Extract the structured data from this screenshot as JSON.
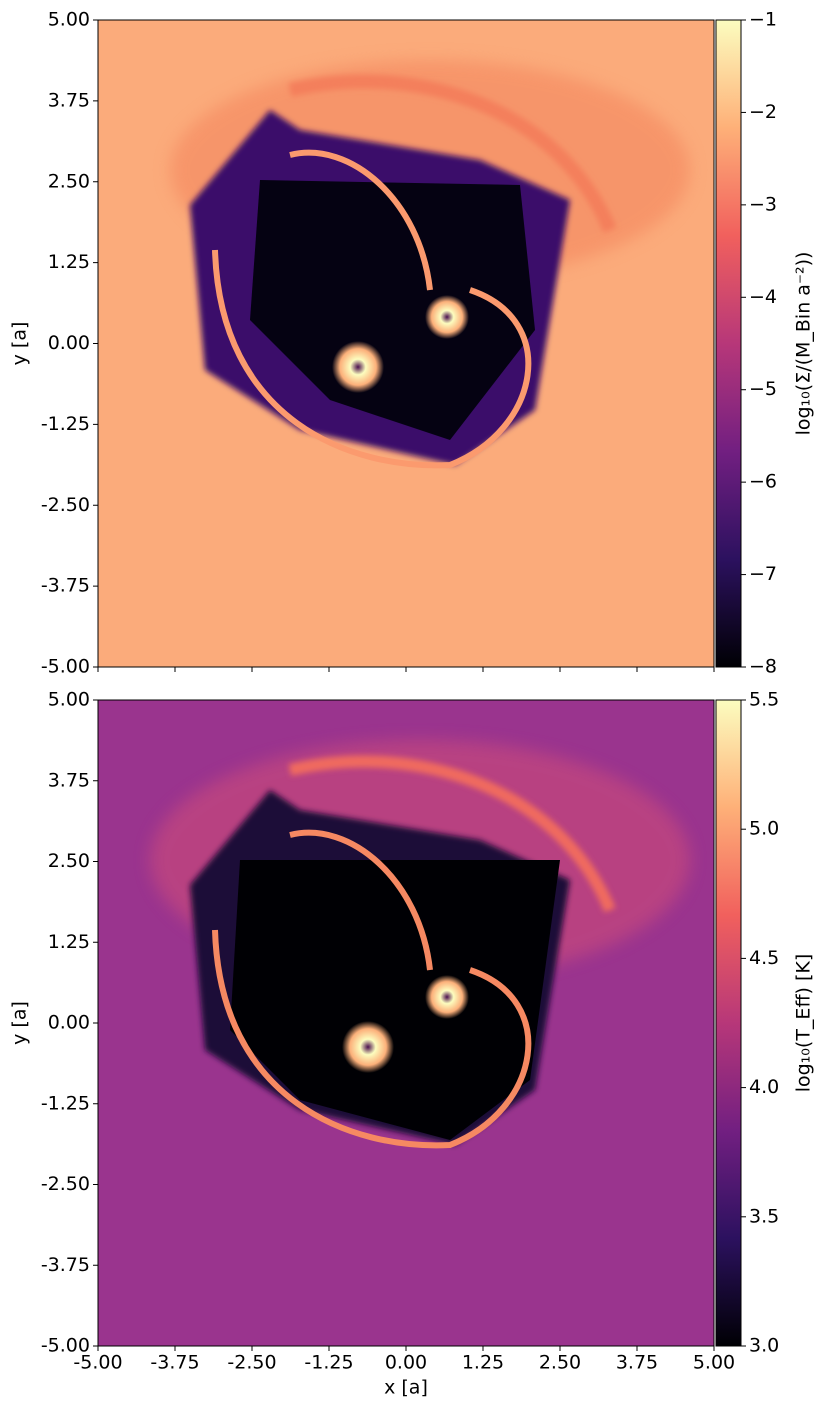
{
  "chart_data": [
    {
      "type": "heatmap",
      "ylabel": "y [a]",
      "colorbar_label": "log₁₀(Σ/(M_Bin a⁻²))",
      "xlim": [
        -5,
        5
      ],
      "ylim": [
        -5,
        5
      ],
      "clim": [
        -8,
        -1
      ],
      "xticks": [
        -5,
        -3.75,
        -2.5,
        -1.25,
        0,
        1.25,
        2.5,
        3.75,
        5
      ],
      "yticks": [
        {
          "value": -5,
          "label": "-5.00"
        },
        {
          "value": -3.75,
          "label": "-3.75"
        },
        {
          "value": -2.5,
          "label": "-2.50"
        },
        {
          "value": -1.25,
          "label": "-1.25"
        },
        {
          "value": 0,
          "label": "0.00"
        },
        {
          "value": 1.25,
          "label": "1.25"
        },
        {
          "value": 2.5,
          "label": "2.50"
        },
        {
          "value": 3.75,
          "label": "3.75"
        },
        {
          "value": 5,
          "label": "5.00"
        }
      ],
      "cticks": [
        {
          "value": -1,
          "label": "−1"
        },
        {
          "value": -2,
          "label": "−2"
        },
        {
          "value": -3,
          "label": "−3"
        },
        {
          "value": -4,
          "label": "−4"
        },
        {
          "value": -5,
          "label": "−5"
        },
        {
          "value": -6,
          "label": "−6"
        },
        {
          "value": -7,
          "label": "−7"
        },
        {
          "value": -8,
          "label": "−8"
        }
      ],
      "colorscale": [
        "#000004",
        "#2c115f",
        "#721f81",
        "#b73779",
        "#f1605d",
        "#feb078",
        "#fcfdbf"
      ]
    },
    {
      "type": "heatmap",
      "xlabel": "x [a]",
      "ylabel": "y [a]",
      "colorbar_label": "log₁₀(T_Eff) [K]",
      "xlim": [
        -5,
        5
      ],
      "ylim": [
        -5,
        5
      ],
      "clim": [
        3,
        5.5
      ],
      "xticks": [
        {
          "value": -5,
          "label": "-5.00"
        },
        {
          "value": -3.75,
          "label": "-3.75"
        },
        {
          "value": -2.5,
          "label": "-2.50"
        },
        {
          "value": -1.25,
          "label": "-1.25"
        },
        {
          "value": 0,
          "label": "0.00"
        },
        {
          "value": 1.25,
          "label": "1.25"
        },
        {
          "value": 2.5,
          "label": "2.50"
        },
        {
          "value": 3.75,
          "label": "3.75"
        },
        {
          "value": 5,
          "label": "5.00"
        }
      ],
      "yticks": [
        {
          "value": -5,
          "label": "-5.00"
        },
        {
          "value": -3.75,
          "label": "-3.75"
        },
        {
          "value": -2.5,
          "label": "-2.50"
        },
        {
          "value": -1.25,
          "label": "-1.25"
        },
        {
          "value": 0,
          "label": "0.00"
        },
        {
          "value": 1.25,
          "label": "1.25"
        },
        {
          "value": 2.5,
          "label": "2.50"
        },
        {
          "value": 3.75,
          "label": "3.75"
        },
        {
          "value": 5,
          "label": "5.00"
        }
      ],
      "cticks": [
        {
          "value": 3,
          "label": "3.0"
        },
        {
          "value": 3.5,
          "label": "3.5"
        },
        {
          "value": 4,
          "label": "4.0"
        },
        {
          "value": 4.5,
          "label": "4.5"
        },
        {
          "value": 5,
          "label": "5.0"
        },
        {
          "value": 5.5,
          "label": "5.5"
        }
      ],
      "colorscale": [
        "#000004",
        "#2c115f",
        "#721f81",
        "#b73779",
        "#f1605d",
        "#feb078",
        "#fcfdbf"
      ]
    }
  ]
}
